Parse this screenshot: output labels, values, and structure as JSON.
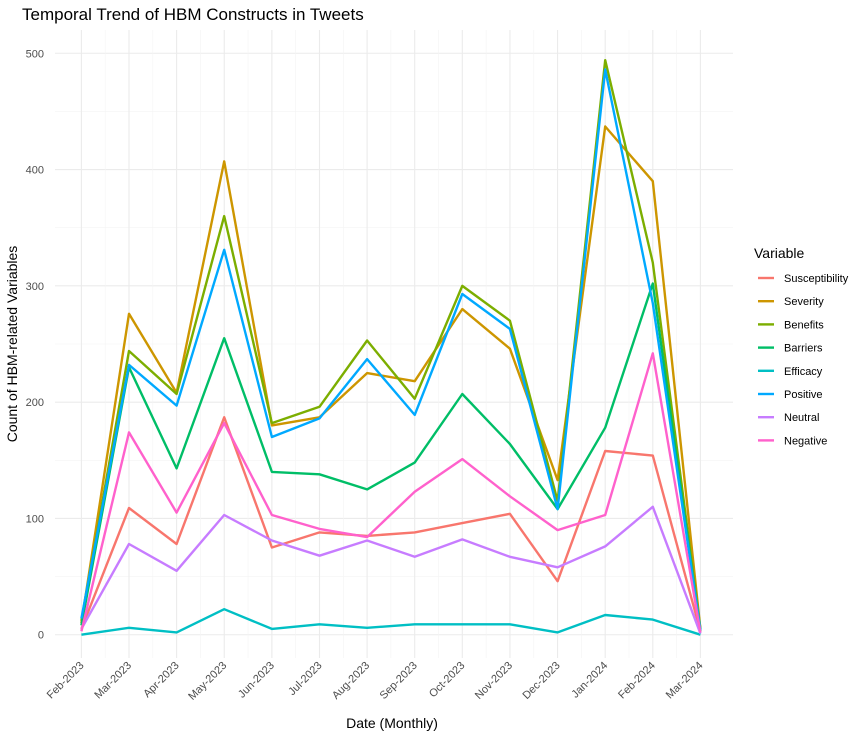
{
  "chart_data": {
    "type": "line",
    "title": "Temporal Trend of HBM Constructs in Tweets",
    "xlabel": "Date (Monthly)",
    "ylabel": "Count of HBM-related Variables",
    "x": [
      "2023-02",
      "2023-03",
      "2023-04",
      "2023-05",
      "2023-06",
      "2023-07",
      "2023-08",
      "2023-09",
      "2023-10",
      "2023-11",
      "2023-12",
      "2024-01",
      "2024-02",
      "2024-03"
    ],
    "x_tick_labels": [
      "Feb-2023",
      "Mar-2023",
      "Apr-2023",
      "May-2023",
      "Jun-2023",
      "Jul-2023",
      "Aug-2023",
      "Sep-2023",
      "Oct-2023",
      "Nov-2023",
      "Dec-2023",
      "Jan-2024",
      "Feb-2024",
      "Mar-2024"
    ],
    "y_ticks": [
      0,
      100,
      200,
      300,
      400,
      500
    ],
    "ylim": [
      -20,
      520
    ],
    "legend_title": "Variable",
    "legend_position": "right",
    "grid": true,
    "series": [
      {
        "name": "Susceptibility",
        "color": "#F8766D",
        "values": [
          5,
          109,
          78,
          187,
          75,
          88,
          85,
          88,
          96,
          104,
          46,
          158,
          154,
          3
        ]
      },
      {
        "name": "Severity",
        "color": "#CD9600",
        "values": [
          10,
          276,
          208,
          407,
          180,
          187,
          225,
          218,
          280,
          246,
          133,
          437,
          390,
          5
        ]
      },
      {
        "name": "Benefits",
        "color": "#7CAE00",
        "values": [
          12,
          244,
          207,
          360,
          182,
          196,
          253,
          203,
          300,
          270,
          115,
          494,
          320,
          5
        ]
      },
      {
        "name": "Barriers",
        "color": "#00BE67",
        "values": [
          8,
          230,
          143,
          255,
          140,
          138,
          125,
          148,
          207,
          164,
          108,
          178,
          302,
          3
        ]
      },
      {
        "name": "Efficacy",
        "color": "#00BFC4",
        "values": [
          0,
          6,
          2,
          22,
          5,
          9,
          6,
          9,
          9,
          9,
          2,
          17,
          13,
          0
        ]
      },
      {
        "name": "Positive",
        "color": "#00A9FF",
        "values": [
          14,
          232,
          197,
          331,
          170,
          186,
          237,
          189,
          293,
          263,
          108,
          486,
          285,
          4
        ]
      },
      {
        "name": "Neutral",
        "color": "#C77CFF",
        "values": [
          5,
          78,
          55,
          103,
          81,
          68,
          81,
          67,
          82,
          67,
          58,
          76,
          110,
          1
        ]
      },
      {
        "name": "Negative",
        "color": "#FF61CC",
        "values": [
          3,
          174,
          105,
          182,
          103,
          91,
          84,
          123,
          151,
          119,
          90,
          103,
          242,
          2
        ]
      }
    ]
  }
}
